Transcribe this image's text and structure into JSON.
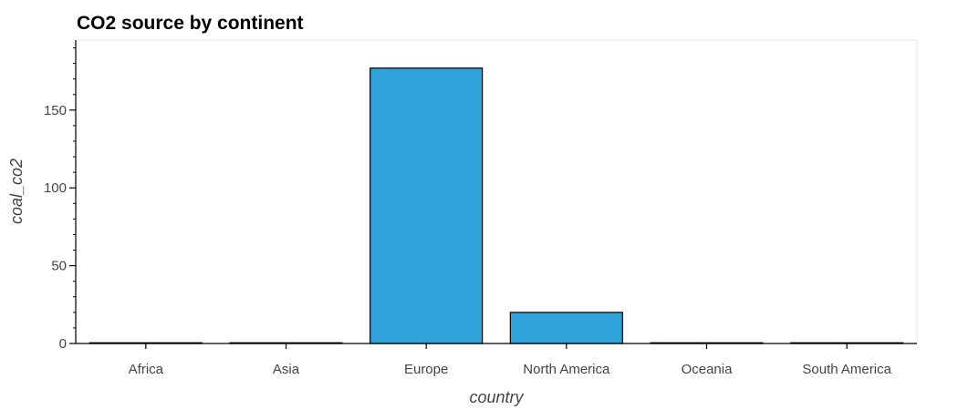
{
  "chart_data": {
    "type": "bar",
    "title": "CO2 source by continent",
    "xlabel": "country",
    "ylabel": "coal_co2",
    "categories": [
      "Africa",
      "Asia",
      "Europe",
      "North America",
      "Oceania",
      "South America"
    ],
    "values": [
      0,
      0,
      177,
      20,
      0,
      0
    ],
    "ylim": [
      0,
      195
    ],
    "yticks": [
      0,
      50,
      100,
      150
    ],
    "ytick_labels": [
      "0",
      "50",
      "100",
      "150"
    ],
    "grid": false,
    "bar_color": "#30a2da",
    "bar_edge_color": "#000000"
  }
}
